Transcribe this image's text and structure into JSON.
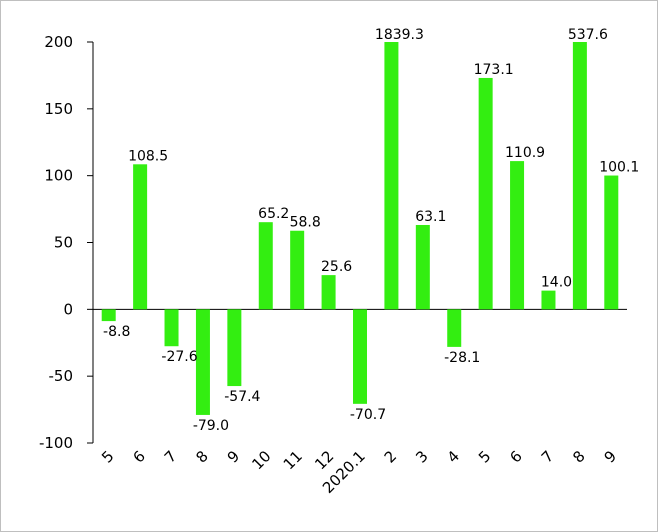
{
  "chart_data": {
    "type": "bar",
    "title": "",
    "xlabel": "",
    "ylabel": "",
    "ylim": [
      -100,
      200
    ],
    "yticks": [
      -100,
      -50,
      0,
      50,
      100,
      150,
      200
    ],
    "grid": false,
    "legend": "none",
    "bar_color": "#33ee11",
    "categories": [
      "5",
      "6",
      "7",
      "8",
      "9",
      "10",
      "11",
      "12",
      "2020.1",
      "2",
      "3",
      "4",
      "5",
      "6",
      "7",
      "8",
      "9"
    ],
    "values": [
      -8.8,
      108.5,
      -27.6,
      -79.0,
      -57.4,
      65.2,
      58.8,
      25.6,
      -70.7,
      1839.3,
      63.1,
      -28.1,
      173.1,
      110.9,
      14.0,
      537.6,
      100.1
    ],
    "data_labels": [
      "-8.8",
      "108.5",
      "-27.6",
      "-79.0",
      "-57.4",
      "65.2",
      "58.8",
      "25.6",
      "-70.7",
      "1839.3",
      "63.1",
      "-28.1",
      "173.1",
      "110.9",
      "14.0",
      "537.6",
      "100.1"
    ]
  }
}
